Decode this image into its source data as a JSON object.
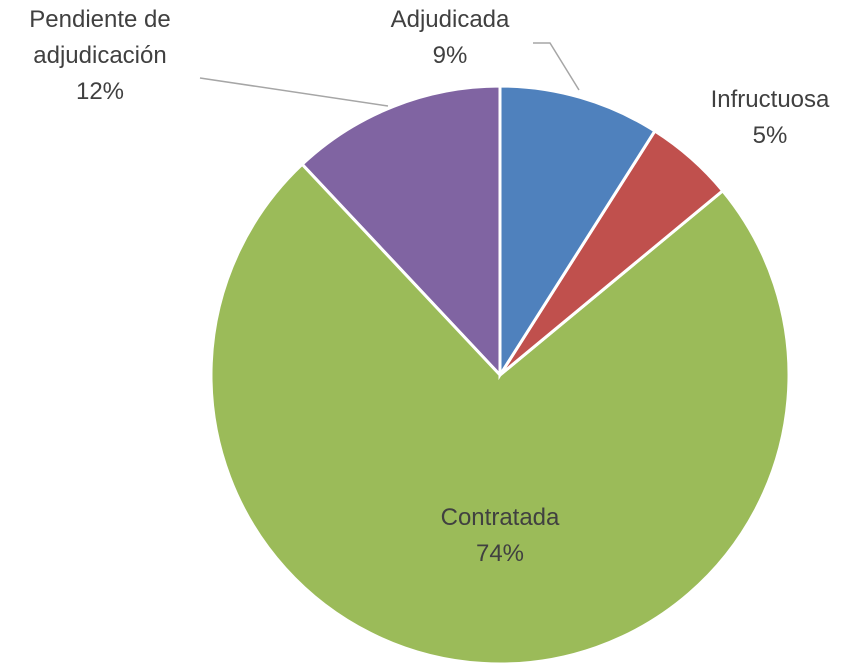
{
  "chart_data": {
    "type": "pie",
    "categories": [
      "Adjudicada",
      "Infructuosa",
      "Contratada",
      "Pendiente de adjudicación"
    ],
    "values": [
      9,
      5,
      74,
      12
    ],
    "value_labels": [
      "9%",
      "5%",
      "74%",
      "12%"
    ],
    "colors": [
      "#4f81bd",
      "#c0504d",
      "#9bbb59",
      "#8064a2"
    ]
  }
}
